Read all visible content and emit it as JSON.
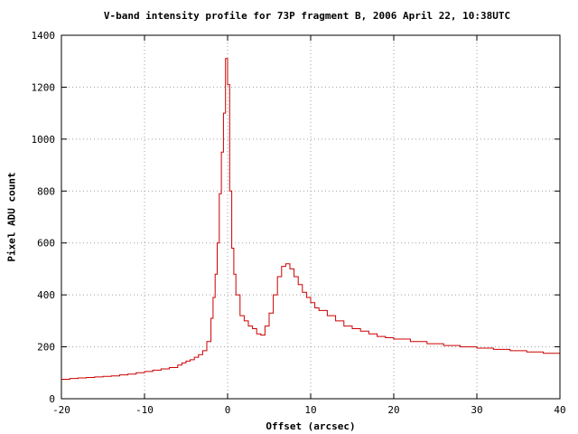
{
  "chart_data": {
    "type": "line",
    "style": "step",
    "title": "V-band intensity profile for 73P fragment B, 2006 April 22, 10:38UTC",
    "xlabel": "Offset (arcsec)",
    "ylabel": "Pixel ADU count",
    "xlim": [
      -20,
      40
    ],
    "ylim": [
      0,
      1400
    ],
    "xticks": [
      -20,
      -10,
      0,
      10,
      20,
      30,
      40
    ],
    "yticks": [
      0,
      200,
      400,
      600,
      800,
      1000,
      1200,
      1400
    ],
    "grid": true,
    "line_color": "#cc0000",
    "series": [
      {
        "x": [
          -20.0,
          -19.0,
          -18.0,
          -17.0,
          -16.0,
          -15.0,
          -14.0,
          -13.0,
          -12.0,
          -11.0,
          -10.0,
          -9.0,
          -8.0,
          -7.0,
          -6.0,
          -5.5,
          -5.0,
          -4.5,
          -4.0,
          -3.5,
          -3.0,
          -2.5,
          -2.0,
          -1.75,
          -1.5,
          -1.25,
          -1.0,
          -0.75,
          -0.5,
          -0.25,
          0.0,
          0.25,
          0.5,
          0.75,
          1.0,
          1.5,
          2.0,
          2.5,
          3.0,
          3.5,
          4.0,
          4.5,
          5.0,
          5.5,
          6.0,
          6.5,
          7.0,
          7.5,
          8.0,
          8.5,
          9.0,
          9.5,
          10.0,
          10.5,
          11.0,
          12.0,
          13.0,
          14.0,
          15.0,
          16.0,
          17.0,
          18.0,
          19.0,
          20.0,
          22.0,
          24.0,
          26.0,
          28.0,
          30.0,
          32.0,
          34.0,
          36.0,
          38.0,
          40.0
        ],
        "y": [
          75,
          78,
          80,
          82,
          84,
          86,
          88,
          92,
          95,
          100,
          105,
          110,
          115,
          120,
          130,
          138,
          145,
          150,
          160,
          170,
          185,
          220,
          310,
          390,
          480,
          600,
          790,
          950,
          1100,
          1310,
          1210,
          800,
          580,
          480,
          400,
          320,
          300,
          280,
          270,
          250,
          245,
          280,
          330,
          400,
          470,
          510,
          520,
          500,
          470,
          440,
          410,
          390,
          370,
          350,
          340,
          320,
          300,
          280,
          270,
          260,
          250,
          240,
          235,
          230,
          220,
          212,
          205,
          200,
          195,
          190,
          185,
          180,
          175,
          170
        ]
      }
    ]
  }
}
